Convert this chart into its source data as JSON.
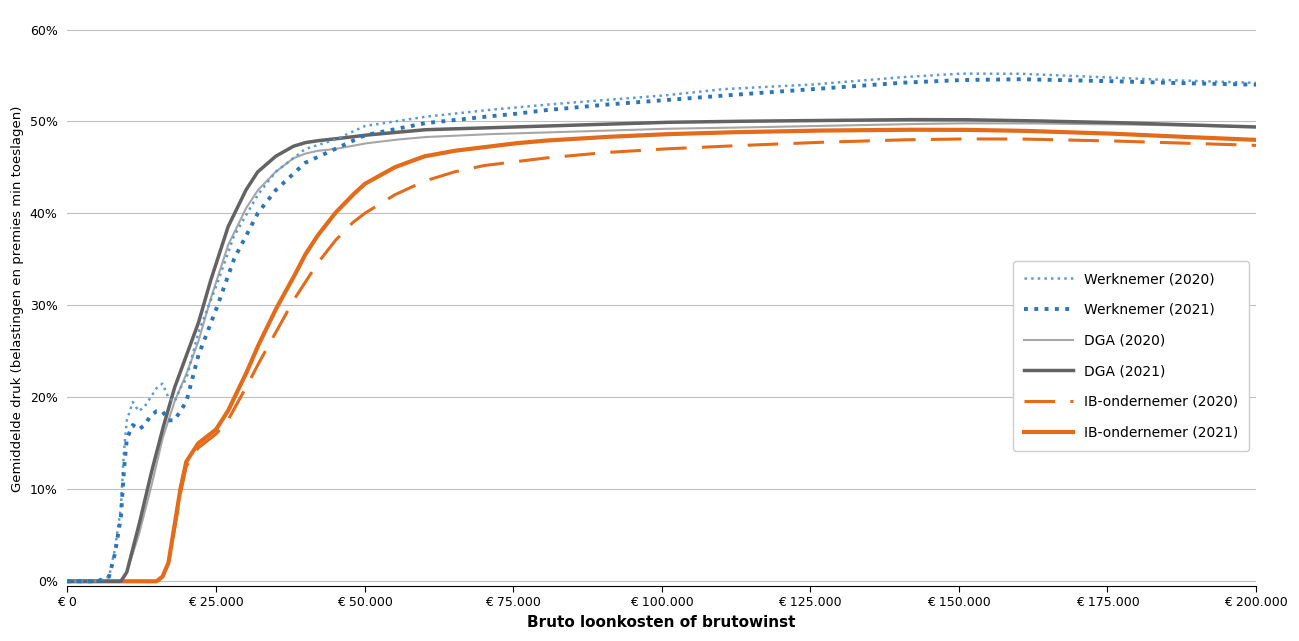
{
  "title": "",
  "xlabel": "Bruto loonkosten of brutowinst",
  "ylabel": "Gemiddelde druk (belastingen en premies min toeslagen)",
  "xlim": [
    0,
    200000
  ],
  "ylim": [
    -0.005,
    0.62
  ],
  "yticks": [
    0.0,
    0.1,
    0.2,
    0.3,
    0.4,
    0.5,
    0.6
  ],
  "xticks": [
    0,
    25000,
    50000,
    75000,
    100000,
    125000,
    150000,
    175000,
    200000
  ],
  "background_color": "#ffffff",
  "grid_color": "#bfbfbf",
  "blue_light": "#5b9bd5",
  "blue_dark": "#2e75b6",
  "gray_light": "#a6a6a6",
  "gray_dark": "#636363",
  "orange_color": "#e36b1a",
  "legend_entries": [
    "Werknemer (2020)",
    "Werknemer (2021)",
    "DGA (2020)",
    "DGA (2021)",
    "IB-ondernemer (2020)",
    "IB-ondernemer (2021)"
  ]
}
